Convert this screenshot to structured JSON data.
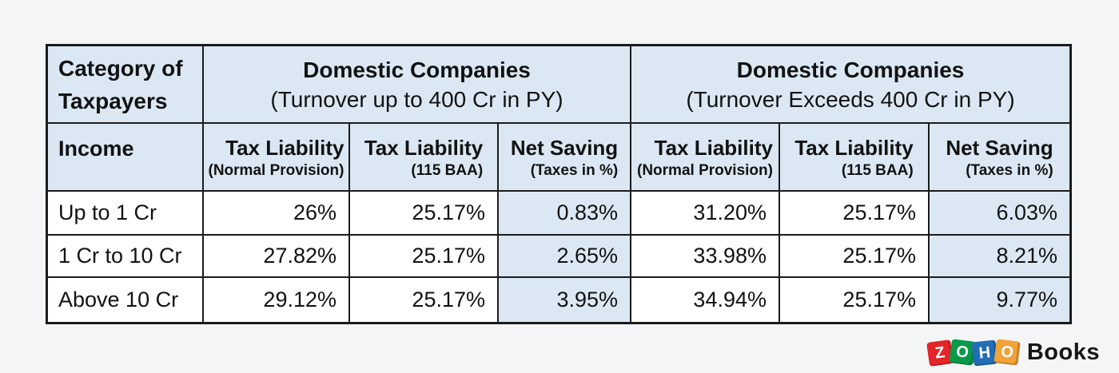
{
  "colors": {
    "page_background": "#f3f5f7",
    "header_cell_background": "#dbe8f4",
    "net_saving_column_background": "#dbe8f4",
    "table_border": "#1b1b1b",
    "text": "#121212"
  },
  "table": {
    "header_row1": {
      "category_line1": "Category of",
      "category_line2": "Taxpayers",
      "group1": {
        "title": "Domestic Companies",
        "subtitle": "(Turnover up to 400 Cr in PY)"
      },
      "group2": {
        "title": "Domestic Companies",
        "subtitle": "(Turnover Exceeds 400 Cr in PY)"
      }
    },
    "header_row2": {
      "income_label": "Income",
      "columns": [
        {
          "title": "Tax Liability",
          "subtitle": "(Normal Provision)"
        },
        {
          "title": "Tax Liability",
          "subtitle": "(115 BAA)"
        },
        {
          "title": "Net Saving",
          "subtitle": "(Taxes in %)"
        },
        {
          "title": "Tax Liability",
          "subtitle": "(Normal Provision)"
        },
        {
          "title": "Tax Liability",
          "subtitle": "(115 BAA)"
        },
        {
          "title": "Net Saving",
          "subtitle": "(Taxes in %)"
        }
      ]
    },
    "rows": [
      {
        "category": "Up to 1 Cr",
        "values": [
          "26%",
          "25.17%",
          "0.83%",
          "31.20%",
          "25.17%",
          "6.03%"
        ]
      },
      {
        "category": "1 Cr to 10 Cr",
        "values": [
          "27.82%",
          "25.17%",
          "2.65%",
          "33.98%",
          "25.17%",
          "8.21%"
        ]
      },
      {
        "category": "Above 10 Cr",
        "values": [
          "29.12%",
          "25.17%",
          "3.95%",
          "34.94%",
          "25.17%",
          "9.77%"
        ]
      }
    ]
  },
  "chart_data": {
    "type": "table",
    "title": "Tax liability comparison for domestic companies under normal provision vs section 115 BAA",
    "column_groups": [
      "Domestic Companies (Turnover up to 400 Cr in PY)",
      "Domestic Companies (Turnover Exceeds 400 Cr in PY)"
    ],
    "columns": [
      "Income",
      "Tax Liability (Normal Provision)",
      "Tax Liability (115 BAA)",
      "Net Saving (Taxes in %)",
      "Tax Liability (Normal Provision)",
      "Tax Liability (115 BAA)",
      "Net Saving (Taxes in %)"
    ],
    "rows": [
      [
        "Up to 1 Cr",
        "26%",
        "25.17%",
        "0.83%",
        "31.20%",
        "25.17%",
        "6.03%"
      ],
      [
        "1 Cr to 10 Cr",
        "27.82%",
        "25.17%",
        "2.65%",
        "33.98%",
        "25.17%",
        "8.21%"
      ],
      [
        "Above 10 Cr",
        "29.12%",
        "25.17%",
        "3.95%",
        "34.94%",
        "25.17%",
        "9.77%"
      ]
    ]
  },
  "logo": {
    "tiles": [
      {
        "letter": "Z",
        "color": "#e42527"
      },
      {
        "letter": "O",
        "color": "#089949"
      },
      {
        "letter": "H",
        "color": "#226db4"
      },
      {
        "letter": "O",
        "color": "#f0a338"
      }
    ],
    "text": "Books"
  }
}
